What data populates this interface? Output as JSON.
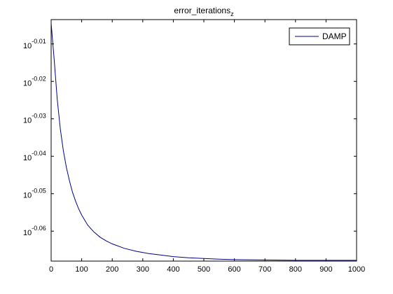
{
  "chart_data": {
    "type": "line",
    "title": "error_iterations",
    "title_subscript": "z",
    "xlabel": "",
    "ylabel": "",
    "xlim": [
      0,
      1000
    ],
    "ylim_exponent": [
      -0.068,
      -0.0035
    ],
    "yscale": "log10",
    "grid": false,
    "legend_position": "top-right",
    "x_ticks": [
      "0",
      "100",
      "200",
      "300",
      "400",
      "500",
      "600",
      "700",
      "800",
      "900",
      "1000"
    ],
    "x_tick_values": [
      0,
      100,
      200,
      300,
      400,
      500,
      600,
      700,
      800,
      900,
      1000
    ],
    "y_tick_base": "10",
    "y_tick_exponents": [
      "-0.01",
      "-0.02",
      "-0.03",
      "-0.04",
      "-0.05",
      "-0.06"
    ],
    "y_tick_values": [
      -0.01,
      -0.02,
      -0.03,
      -0.04,
      -0.05,
      -0.06
    ],
    "series": [
      {
        "name": "DAMP",
        "color": "#00008b",
        "x": [
          0,
          10,
          20,
          30,
          40,
          50,
          60,
          70,
          80,
          90,
          100,
          120,
          140,
          160,
          180,
          200,
          240,
          280,
          320,
          360,
          400,
          450,
          500,
          550,
          600,
          700,
          800,
          900,
          1000
        ],
        "log10_y": [
          -0.0045,
          -0.0143,
          -0.0248,
          -0.0327,
          -0.0385,
          -0.043,
          -0.0466,
          -0.0496,
          -0.052,
          -0.054,
          -0.0557,
          -0.0584,
          -0.0602,
          -0.0616,
          -0.0626,
          -0.0634,
          -0.0646,
          -0.0654,
          -0.066,
          -0.0664,
          -0.0668,
          -0.0671,
          -0.0673,
          -0.0675,
          -0.0676,
          -0.0677,
          -0.0678,
          -0.0678,
          -0.0678
        ]
      }
    ]
  }
}
